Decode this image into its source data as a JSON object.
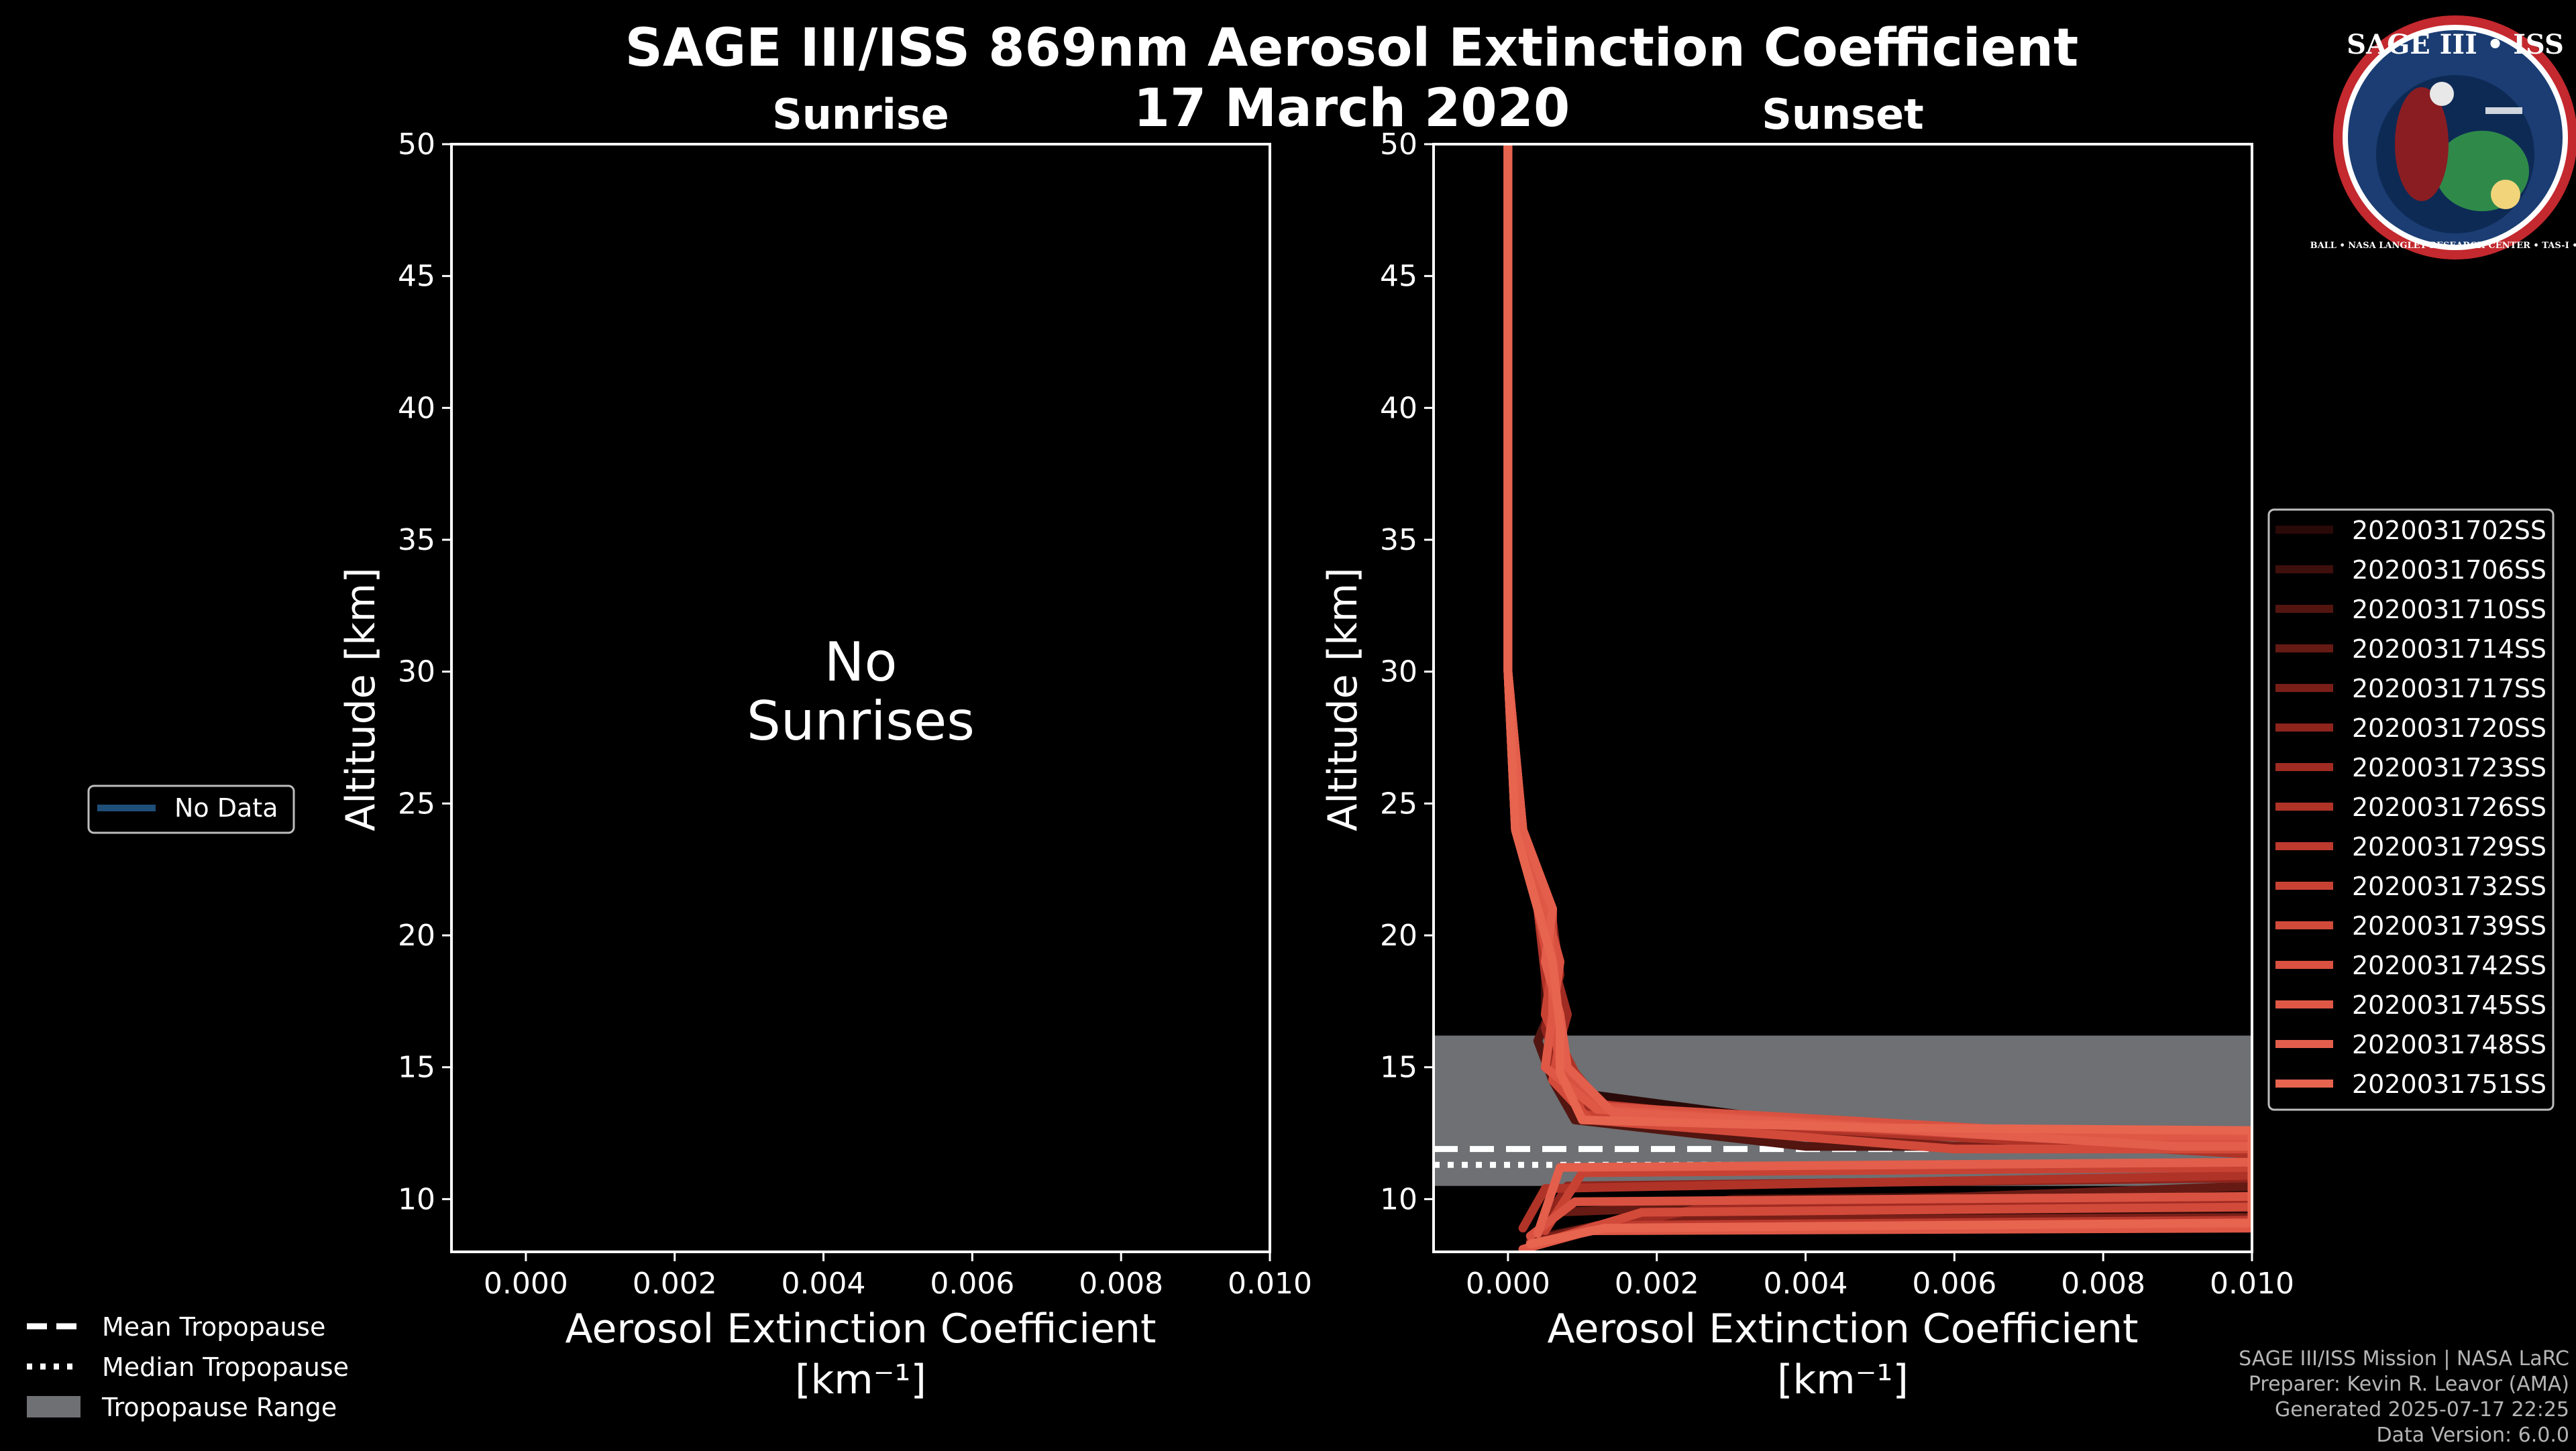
{
  "page": {
    "title_line1": "SAGE III/ISS 869nm Aerosol Extinction Coefficient",
    "title_line2": "17 March 2020"
  },
  "logo": {
    "text": "SAGE III • ISS",
    "ring_text": "BALL • NASA LANGLEY RESEARCH CENTER • TAS-I • ESA"
  },
  "left_legend": {
    "item": "No Data",
    "color": "#1f4e79"
  },
  "bottom_legend": {
    "mean": "Mean Tropopause",
    "median": "Median Tropopause",
    "range": "Tropopause Range"
  },
  "credits": {
    "line1": "SAGE III/ISS Mission | NASA LaRC",
    "line2": "Preparer: Kevin R. Leavor (AMA)",
    "line3": "Generated 2025-07-17 22:25",
    "line4": "Data Version: 6.0.0"
  },
  "chart_data": [
    {
      "type": "line",
      "title": "Sunrise",
      "xlabel": "Aerosol Extinction Coefficient",
      "xlabel_unit": "[km⁻¹]",
      "ylabel": "Altitude [km]",
      "xlim": [
        -0.001,
        0.01
      ],
      "ylim": [
        8,
        50
      ],
      "xticks": [
        0,
        0.002,
        0.004,
        0.006,
        0.008,
        0.01
      ],
      "xtick_labels": [
        "0.000",
        "0.002",
        "0.004",
        "0.006",
        "0.008",
        "0.010"
      ],
      "yticks": [
        10,
        15,
        20,
        25,
        30,
        35,
        40,
        45,
        50
      ],
      "ytick_labels": [
        "10",
        "15",
        "20",
        "25",
        "30",
        "35",
        "40",
        "45",
        "50"
      ],
      "annotation": [
        "No",
        "Sunrises"
      ],
      "series": []
    },
    {
      "type": "line",
      "title": "Sunset",
      "xlabel": "Aerosol Extinction Coefficient",
      "xlabel_unit": "[km⁻¹]",
      "ylabel": "Altitude [km]",
      "xlim": [
        -0.001,
        0.01
      ],
      "ylim": [
        8,
        50
      ],
      "xticks": [
        0,
        0.002,
        0.004,
        0.006,
        0.008,
        0.01
      ],
      "xtick_labels": [
        "0.000",
        "0.002",
        "0.004",
        "0.006",
        "0.008",
        "0.010"
      ],
      "yticks": [
        10,
        15,
        20,
        25,
        30,
        35,
        40,
        45,
        50
      ],
      "ytick_labels": [
        "10",
        "15",
        "20",
        "25",
        "30",
        "35",
        "40",
        "45",
        "50"
      ],
      "tropopause": {
        "mean": 11.9,
        "median": 11.3,
        "range": [
          10.5,
          16.2
        ]
      },
      "series": [
        {
          "name": "2020031702SS",
          "color": "#2a0a08",
          "points": [
            [
              0.0,
              50
            ],
            [
              0.0,
              30
            ],
            [
              0.0001,
              24
            ],
            [
              0.0005,
              21
            ],
            [
              0.0006,
              19
            ],
            [
              0.0006,
              17
            ],
            [
              0.0005,
              15
            ],
            [
              0.001,
              14
            ],
            [
              0.005,
              12.5
            ],
            [
              0.01,
              12.4
            ],
            [
              0.01,
              9.5
            ],
            [
              0.002,
              9.4
            ],
            [
              0.0003,
              8.2
            ]
          ]
        },
        {
          "name": "2020031706SS",
          "color": "#3e0f0c",
          "points": [
            [
              0.0,
              50
            ],
            [
              0.0,
              30
            ],
            [
              0.0002,
              23
            ],
            [
              0.0006,
              21
            ],
            [
              0.0005,
              19
            ],
            [
              0.0005,
              17
            ],
            [
              0.0007,
              15
            ],
            [
              0.0012,
              13.5
            ],
            [
              0.008,
              12.2
            ],
            [
              0.01,
              12.2
            ],
            [
              0.01,
              10.2
            ],
            [
              0.003,
              10.0
            ],
            [
              0.0005,
              8.6
            ]
          ]
        },
        {
          "name": "2020031710SS",
          "color": "#521510",
          "points": [
            [
              0.0,
              50
            ],
            [
              0.0,
              30
            ],
            [
              0.0001,
              24
            ],
            [
              0.0004,
              21
            ],
            [
              0.0007,
              18
            ],
            [
              0.0004,
              16
            ],
            [
              0.0006,
              14.5
            ],
            [
              0.0009,
              13
            ],
            [
              0.004,
              12.0
            ],
            [
              0.01,
              12.0
            ],
            [
              0.01,
              9.0
            ],
            [
              0.001,
              8.8
            ],
            [
              0.0002,
              8.1
            ]
          ]
        },
        {
          "name": "2020031714SS",
          "color": "#661a14",
          "points": [
            [
              0.0,
              50
            ],
            [
              0.0,
              30
            ],
            [
              0.0002,
              24
            ],
            [
              0.0005,
              21
            ],
            [
              0.0006,
              18.5
            ],
            [
              0.0007,
              16.5
            ],
            [
              0.0008,
              14.5
            ],
            [
              0.0015,
              13
            ],
            [
              0.01,
              11.8
            ],
            [
              0.01,
              10.5
            ],
            [
              0.0006,
              9.5
            ],
            [
              0.0004,
              8.3
            ]
          ]
        },
        {
          "name": "2020031717SS",
          "color": "#7a1f18",
          "points": [
            [
              0.0,
              50
            ],
            [
              0.0,
              30
            ],
            [
              0.0001,
              24
            ],
            [
              0.0004,
              21
            ],
            [
              0.0005,
              19
            ],
            [
              0.0006,
              17
            ],
            [
              0.0006,
              15
            ],
            [
              0.001,
              13.2
            ],
            [
              0.006,
              12.0
            ],
            [
              0.01,
              11.9
            ],
            [
              0.01,
              9.3
            ],
            [
              0.0015,
              9.2
            ],
            [
              0.0003,
              8.4
            ]
          ]
        },
        {
          "name": "2020031720SS",
          "color": "#8e241c",
          "points": [
            [
              0.0,
              50
            ],
            [
              0.0,
              30
            ],
            [
              0.0002,
              24
            ],
            [
              0.0006,
              20.5
            ],
            [
              0.0007,
              18.5
            ],
            [
              0.0005,
              16.5
            ],
            [
              0.0007,
              14.8
            ],
            [
              0.0013,
              13.2
            ],
            [
              0.009,
              12.1
            ],
            [
              0.01,
              12.1
            ],
            [
              0.01,
              10.8
            ],
            [
              0.0008,
              10.5
            ],
            [
              0.0004,
              8.7
            ]
          ]
        },
        {
          "name": "2020031723SS",
          "color": "#a02b22",
          "points": [
            [
              0.0,
              50
            ],
            [
              0.0,
              30
            ],
            [
              0.0001,
              24
            ],
            [
              0.0005,
              21
            ],
            [
              0.0006,
              19
            ],
            [
              0.0008,
              17
            ],
            [
              0.0006,
              15
            ],
            [
              0.0011,
              13.4
            ],
            [
              0.007,
              12.3
            ],
            [
              0.01,
              12.3
            ],
            [
              0.01,
              9.8
            ],
            [
              0.0025,
              9.6
            ],
            [
              0.0006,
              8.5
            ]
          ]
        },
        {
          "name": "2020031726SS",
          "color": "#b03328",
          "points": [
            [
              0.0,
              50
            ],
            [
              0.0,
              30
            ],
            [
              0.0002,
              24
            ],
            [
              0.0004,
              21
            ],
            [
              0.0005,
              18.5
            ],
            [
              0.0006,
              16.5
            ],
            [
              0.0009,
              14.8
            ],
            [
              0.0014,
              13.1
            ],
            [
              0.01,
              11.7
            ],
            [
              0.01,
              10.9
            ],
            [
              0.0005,
              10.4
            ],
            [
              0.0002,
              8.9
            ]
          ]
        },
        {
          "name": "2020031729SS",
          "color": "#bd3a2e",
          "points": [
            [
              0.0,
              50
            ],
            [
              0.0,
              30
            ],
            [
              0.0001,
              24
            ],
            [
              0.0005,
              21
            ],
            [
              0.0007,
              19
            ],
            [
              0.0006,
              17
            ],
            [
              0.0007,
              15
            ],
            [
              0.0012,
              13.6
            ],
            [
              0.005,
              12.6
            ],
            [
              0.01,
              12.5
            ],
            [
              0.01,
              9.2
            ],
            [
              0.0012,
              9.0
            ],
            [
              0.0003,
              8.2
            ]
          ]
        },
        {
          "name": "2020031732SS",
          "color": "#c84234",
          "points": [
            [
              0.0,
              50
            ],
            [
              0.0,
              30
            ],
            [
              0.0002,
              24
            ],
            [
              0.0006,
              21
            ],
            [
              0.0006,
              19
            ],
            [
              0.0005,
              17
            ],
            [
              0.0008,
              15
            ],
            [
              0.001,
              13.2
            ],
            [
              0.008,
              12.2
            ],
            [
              0.01,
              12.2
            ],
            [
              0.01,
              11.2
            ],
            [
              0.001,
              11.0
            ],
            [
              0.0005,
              8.8
            ]
          ]
        },
        {
          "name": "2020031739SS",
          "color": "#d24a3a",
          "points": [
            [
              0.0,
              50
            ],
            [
              0.0,
              30
            ],
            [
              0.0001,
              24
            ],
            [
              0.0004,
              21
            ],
            [
              0.0006,
              18
            ],
            [
              0.0007,
              16
            ],
            [
              0.0006,
              14.5
            ],
            [
              0.0011,
              13
            ],
            [
              0.006,
              11.9
            ],
            [
              0.01,
              11.9
            ],
            [
              0.01,
              9.7
            ],
            [
              0.0018,
              9.5
            ],
            [
              0.0004,
              8.3
            ]
          ]
        },
        {
          "name": "2020031742SS",
          "color": "#d95140",
          "points": [
            [
              0.0,
              50
            ],
            [
              0.0,
              30
            ],
            [
              0.0002,
              24
            ],
            [
              0.0005,
              21
            ],
            [
              0.0007,
              19
            ],
            [
              0.0006,
              17
            ],
            [
              0.0007,
              15
            ],
            [
              0.0013,
              13.5
            ],
            [
              0.01,
              12.1
            ],
            [
              0.01,
              10.1
            ],
            [
              0.0009,
              9.9
            ],
            [
              0.0003,
              8.6
            ]
          ]
        },
        {
          "name": "2020031745SS",
          "color": "#df5846",
          "points": [
            [
              0.0,
              50
            ],
            [
              0.0,
              30
            ],
            [
              0.0001,
              24
            ],
            [
              0.0005,
              21
            ],
            [
              0.0006,
              19
            ],
            [
              0.0006,
              17
            ],
            [
              0.0005,
              15
            ],
            [
              0.0012,
              13.4
            ],
            [
              0.007,
              12.4
            ],
            [
              0.01,
              12.4
            ],
            [
              0.01,
              8.9
            ],
            [
              0.0011,
              8.8
            ],
            [
              0.0002,
              8.1
            ]
          ]
        },
        {
          "name": "2020031748SS",
          "color": "#e35e4b",
          "points": [
            [
              0.0,
              50
            ],
            [
              0.0,
              30
            ],
            [
              0.0002,
              24
            ],
            [
              0.0006,
              21
            ],
            [
              0.0005,
              19
            ],
            [
              0.0007,
              17
            ],
            [
              0.0008,
              15
            ],
            [
              0.0014,
              13.3
            ],
            [
              0.009,
              12.0
            ],
            [
              0.01,
              12.0
            ],
            [
              0.01,
              11.4
            ],
            [
              0.0007,
              11.2
            ],
            [
              0.0004,
              8.7
            ]
          ]
        },
        {
          "name": "2020031751SS",
          "color": "#e7644f",
          "points": [
            [
              0.0,
              50
            ],
            [
              0.0,
              30
            ],
            [
              0.0001,
              24
            ],
            [
              0.0004,
              21
            ],
            [
              0.0006,
              19
            ],
            [
              0.0007,
              16.5
            ],
            [
              0.0007,
              14.8
            ],
            [
              0.001,
              13.0
            ],
            [
              0.005,
              12.7
            ],
            [
              0.01,
              12.6
            ],
            [
              0.01,
              9.1
            ],
            [
              0.0013,
              8.9
            ],
            [
              0.0003,
              8.3
            ]
          ]
        }
      ]
    }
  ]
}
